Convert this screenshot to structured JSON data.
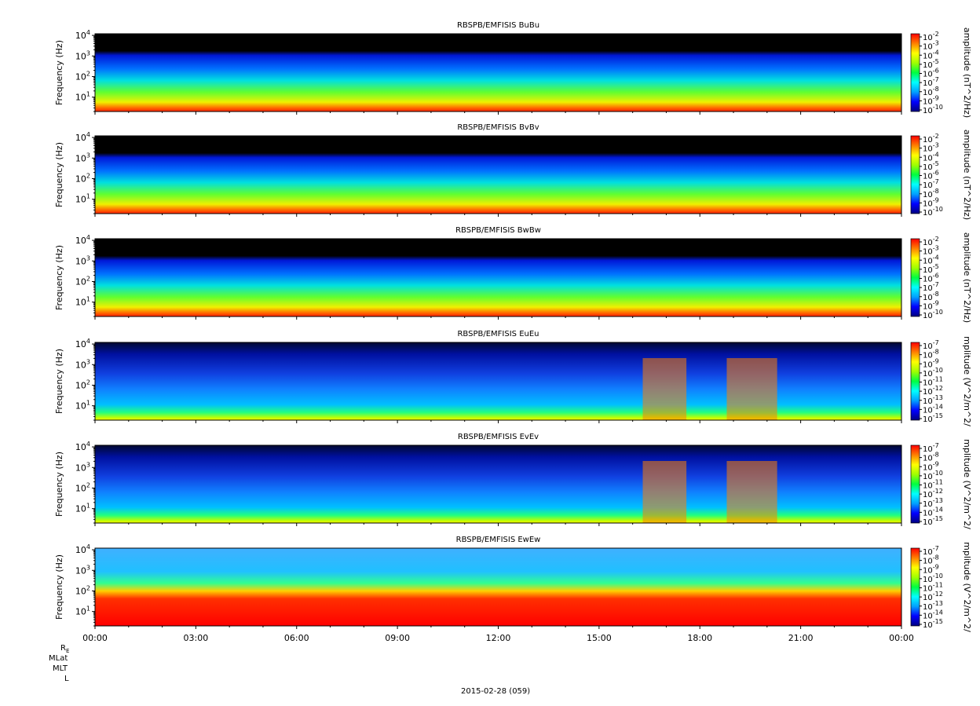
{
  "chart_data": {
    "type": "heatmap",
    "date_label": "2015-02-28 (059)",
    "ephemeris_labels": [
      "R_E",
      "MLat",
      "MLT",
      "L"
    ],
    "x_ticks": [
      "00:00",
      "03:00",
      "06:00",
      "09:00",
      "12:00",
      "15:00",
      "18:00",
      "21:00",
      "00:00"
    ],
    "x_range_hours": [
      0,
      24
    ],
    "y_label": "Frequency (Hz)",
    "y_scale": "log",
    "y_range_hz": [
      2,
      12000
    ],
    "y_ticks": [
      {
        "base": "10",
        "exp": "1"
      },
      {
        "base": "10",
        "exp": "2"
      },
      {
        "base": "10",
        "exp": "3"
      },
      {
        "base": "10",
        "exp": "4"
      }
    ],
    "colormap": [
      "#000080",
      "#0000ff",
      "#00a0ff",
      "#00ffff",
      "#00ff40",
      "#a0ff00",
      "#ffff00",
      "#ff8000",
      "#ff0000"
    ],
    "panels": [
      {
        "title": "RBSPB/EMFISIS  BuBu",
        "cb_label": "amplitude (nT^2/Hz)",
        "cb_ticks": [
          {
            "base": "10",
            "exp": "-2"
          },
          {
            "base": "10",
            "exp": "-3"
          },
          {
            "base": "10",
            "exp": "-4"
          },
          {
            "base": "10",
            "exp": "-5"
          },
          {
            "base": "10",
            "exp": "-6"
          },
          {
            "base": "10",
            "exp": "-7"
          },
          {
            "base": "10",
            "exp": "-8"
          },
          {
            "base": "10",
            "exp": "-9"
          },
          {
            "base": "10",
            "exp": "-10"
          }
        ]
      },
      {
        "title": "RBSPB/EMFISIS  BvBv",
        "cb_label": "amplitude (nT^2/Hz)",
        "cb_ticks": [
          {
            "base": "10",
            "exp": "-2"
          },
          {
            "base": "10",
            "exp": "-3"
          },
          {
            "base": "10",
            "exp": "-4"
          },
          {
            "base": "10",
            "exp": "-5"
          },
          {
            "base": "10",
            "exp": "-6"
          },
          {
            "base": "10",
            "exp": "-7"
          },
          {
            "base": "10",
            "exp": "-8"
          },
          {
            "base": "10",
            "exp": "-9"
          },
          {
            "base": "10",
            "exp": "-10"
          }
        ]
      },
      {
        "title": "RBSPB/EMFISIS  BwBw",
        "cb_label": "amplitude (nT^2/Hz)",
        "cb_ticks": [
          {
            "base": "10",
            "exp": "-2"
          },
          {
            "base": "10",
            "exp": "-3"
          },
          {
            "base": "10",
            "exp": "-4"
          },
          {
            "base": "10",
            "exp": "-5"
          },
          {
            "base": "10",
            "exp": "-6"
          },
          {
            "base": "10",
            "exp": "-7"
          },
          {
            "base": "10",
            "exp": "-8"
          },
          {
            "base": "10",
            "exp": "-9"
          },
          {
            "base": "10",
            "exp": "-10"
          }
        ]
      },
      {
        "title": "RBSPB/EMFISIS  EuEu",
        "cb_label": "mplitude (V^2/m^2/",
        "cb_ticks": [
          {
            "base": "10",
            "exp": "-7"
          },
          {
            "base": "10",
            "exp": "-8"
          },
          {
            "base": "10",
            "exp": "-9"
          },
          {
            "base": "10",
            "exp": "-10"
          },
          {
            "base": "10",
            "exp": "-11"
          },
          {
            "base": "10",
            "exp": "-12"
          },
          {
            "base": "10",
            "exp": "-13"
          },
          {
            "base": "10",
            "exp": "-14"
          },
          {
            "base": "10",
            "exp": "-15"
          }
        ]
      },
      {
        "title": "RBSPB/EMFISIS  EvEv",
        "cb_label": "mplitude (V^2/m^2/",
        "cb_ticks": [
          {
            "base": "10",
            "exp": "-7"
          },
          {
            "base": "10",
            "exp": "-8"
          },
          {
            "base": "10",
            "exp": "-9"
          },
          {
            "base": "10",
            "exp": "-10"
          },
          {
            "base": "10",
            "exp": "-11"
          },
          {
            "base": "10",
            "exp": "-12"
          },
          {
            "base": "10",
            "exp": "-13"
          },
          {
            "base": "10",
            "exp": "-14"
          },
          {
            "base": "10",
            "exp": "-15"
          }
        ]
      },
      {
        "title": "RBSPB/EMFISIS  EwEw",
        "cb_label": "mplitude (V^2/m^2/",
        "cb_ticks": [
          {
            "base": "10",
            "exp": "-7"
          },
          {
            "base": "10",
            "exp": "-8"
          },
          {
            "base": "10",
            "exp": "-9"
          },
          {
            "base": "10",
            "exp": "-10"
          },
          {
            "base": "10",
            "exp": "-11"
          },
          {
            "base": "10",
            "exp": "-12"
          },
          {
            "base": "10",
            "exp": "-13"
          },
          {
            "base": "10",
            "exp": "-14"
          },
          {
            "base": "10",
            "exp": "-15"
          }
        ]
      }
    ]
  }
}
